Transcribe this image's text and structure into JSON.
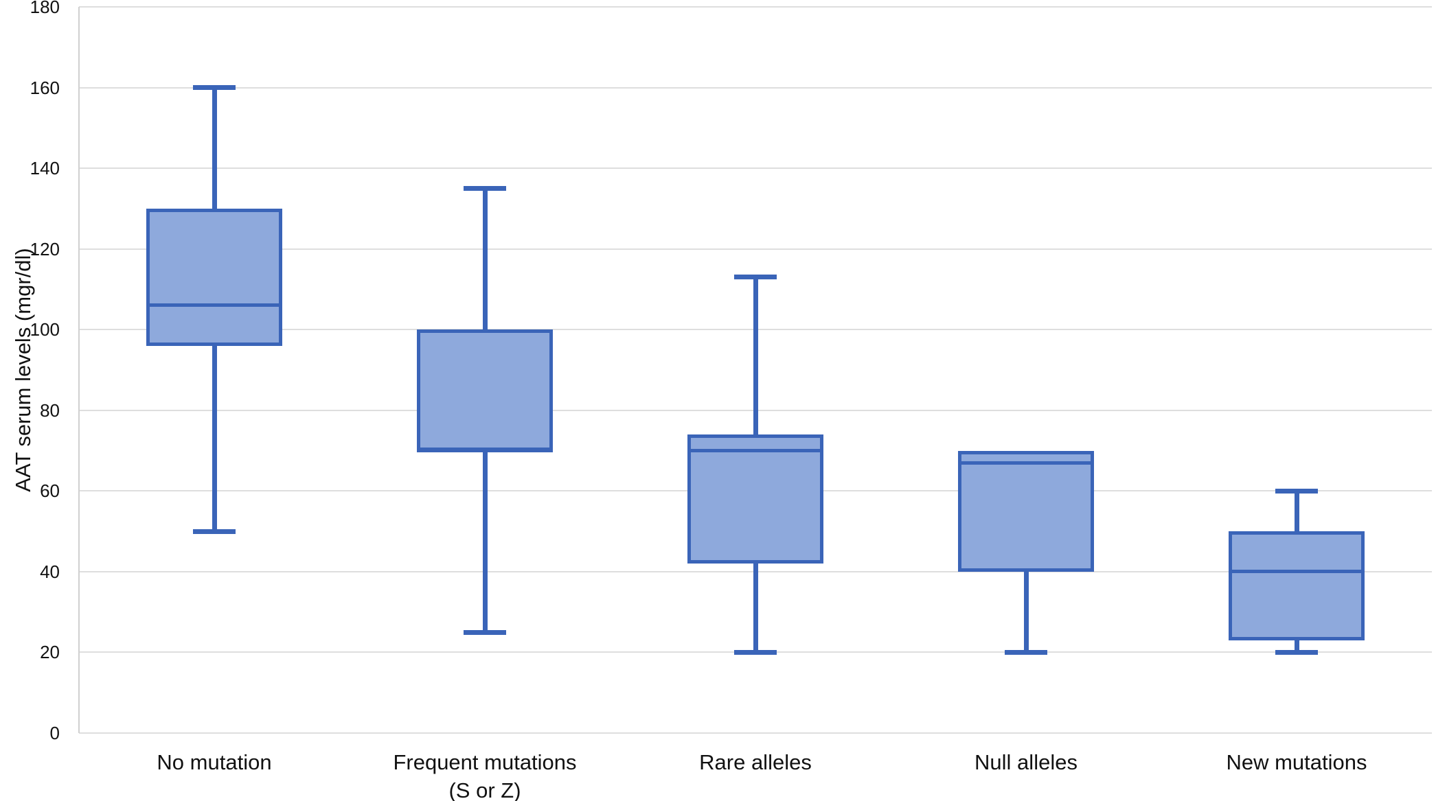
{
  "chart_data": {
    "type": "box",
    "title": "",
    "xlabel": "",
    "ylabel": "AAT serum levels (mgr/dl)",
    "ylim": [
      0,
      180
    ],
    "ytick_step": 20,
    "yticks": [
      0,
      20,
      40,
      60,
      80,
      100,
      120,
      140,
      160,
      180
    ],
    "grid": "horizontal",
    "legend": "none",
    "categories": [
      "No mutation",
      "Frequent mutations (S or Z)",
      "Rare alleles",
      "Null alleles",
      "New mutations"
    ],
    "boxes": [
      {
        "label": "No mutation",
        "label_lines": [
          "No mutation"
        ],
        "whisker_low": 50,
        "q1": 96,
        "median": 106,
        "q3": 130,
        "whisker_high": 160
      },
      {
        "label": "Frequent mutations (S or Z)",
        "label_lines": [
          "Frequent mutations",
          "(S or Z)"
        ],
        "whisker_low": 25,
        "q1": 70,
        "median": 70,
        "q3": 100,
        "whisker_high": 135
      },
      {
        "label": "Rare alleles",
        "label_lines": [
          "Rare alleles"
        ],
        "whisker_low": 20,
        "q1": 42,
        "median": 70,
        "q3": 74,
        "whisker_high": 113
      },
      {
        "label": "Null alleles",
        "label_lines": [
          "Null alleles"
        ],
        "whisker_low": 20,
        "q1": 40,
        "median": 67,
        "q3": 70,
        "whisker_high": 70
      },
      {
        "label": "New mutations",
        "label_lines": [
          "New mutations"
        ],
        "whisker_low": 20,
        "q1": 23,
        "median": 40,
        "q3": 50,
        "whisker_high": 60
      }
    ],
    "colors": {
      "box_fill": "#8EA9DC",
      "box_line": "#3A64B8",
      "gridline": "#DEDEDE",
      "axis_line": "#D0D0D0",
      "text": "#111111",
      "background": "#FFFFFF"
    }
  }
}
